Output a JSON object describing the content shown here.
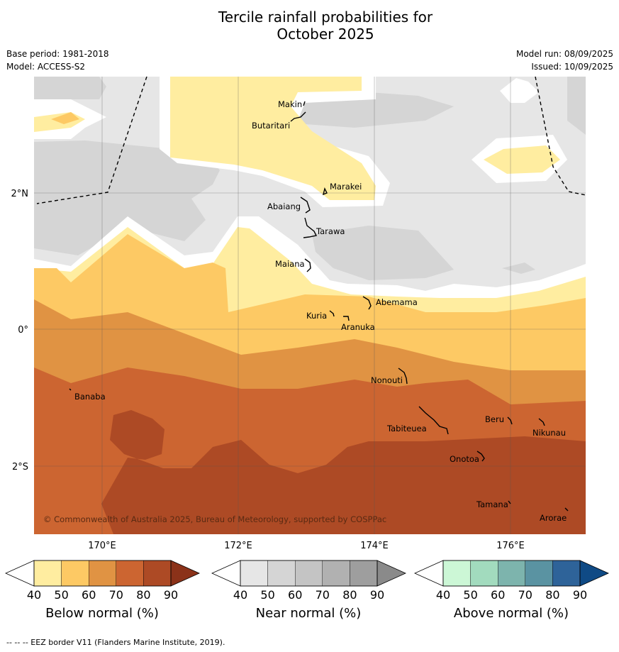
{
  "header": {
    "title_line1": "Tercile rainfall probabilities for",
    "title_line2": "October 2025",
    "base_period": "Base period: 1981-2018",
    "model": "Model: ACCESS-S2",
    "model_run": "Model run: 08/09/2025",
    "issued": "Issued: 10/09/2025"
  },
  "map": {
    "lat_labels": [
      "2°N",
      "0°",
      "2°S"
    ],
    "lon_labels": [
      "170°E",
      "172°E",
      "174°E",
      "176°E"
    ],
    "copyright": "© Commonwealth of Australia 2025, Bureau of Meteorology, supported by COSPPac",
    "places": [
      "Makin",
      "Butaritari",
      "Marakei",
      "Abaiang",
      "Tarawa",
      "Maiana",
      "Abemama",
      "Kuria",
      "Aranuka",
      "Nonouti",
      "Banaba",
      "Beru",
      "Nikunau",
      "Tabiteuea",
      "Onotoa",
      "Tamana",
      "Arorae"
    ]
  },
  "colorbars": [
    {
      "label": "Below normal (%)",
      "ticks": [
        "40",
        "50",
        "60",
        "70",
        "80",
        "90"
      ],
      "colors": [
        "#ffeda0",
        "#fdc964",
        "#e09343",
        "#cc6531",
        "#ad4a25",
        "#8b3219"
      ]
    },
    {
      "label": "Near normal (%)",
      "ticks": [
        "40",
        "50",
        "60",
        "70",
        "80",
        "90"
      ],
      "colors": [
        "#e6e6e6",
        "#d5d5d5",
        "#c4c4c4",
        "#b1b1b1",
        "#9e9e9e",
        "#8a8a8a"
      ]
    },
    {
      "label": "Above normal (%)",
      "ticks": [
        "40",
        "50",
        "60",
        "70",
        "80",
        "90"
      ],
      "colors": [
        "#ccf7d6",
        "#a2dbbe",
        "#7db4ad",
        "#5a93a2",
        "#2e6399",
        "#0f4a85"
      ]
    }
  ],
  "footer": "--  --  -- EEZ border V11 (Flanders Marine Institute, 2019)."
}
